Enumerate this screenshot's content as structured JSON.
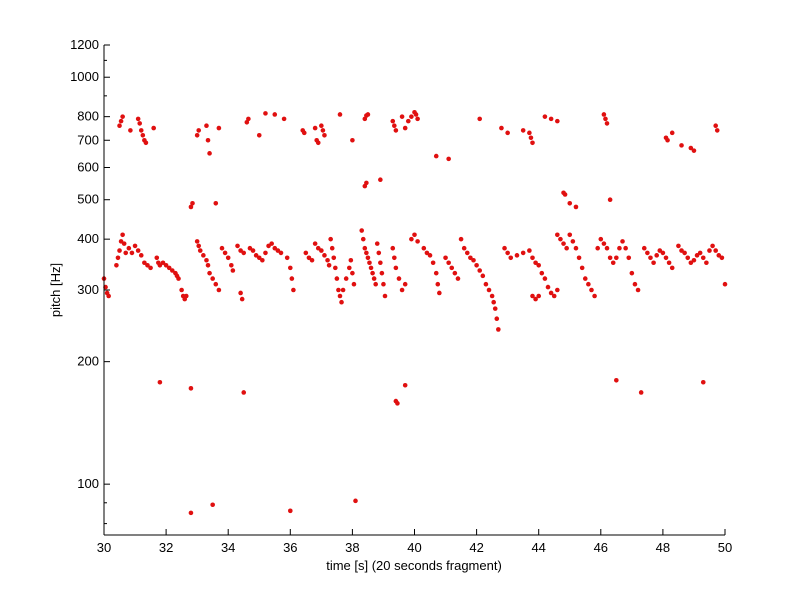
{
  "chart_data": {
    "type": "scatter",
    "xlabel": "time [s] (20 seconds fragment)",
    "ylabel": "pitch [Hz]",
    "xlim": [
      30,
      50
    ],
    "ylim": [
      75,
      1200
    ],
    "y_scale": "log",
    "grid": false,
    "legend": "none",
    "marker_color": "#e01010",
    "x_ticks": [
      30,
      32,
      34,
      36,
      38,
      40,
      42,
      44,
      46,
      48,
      50
    ],
    "x_tick_labels": [
      "30",
      "32",
      "34",
      "36",
      "38",
      "40",
      "42",
      "44",
      "46",
      "48",
      "50"
    ],
    "y_ticks": [
      100,
      200,
      300,
      400,
      500,
      600,
      700,
      800,
      1000,
      1200
    ],
    "y_tick_labels": [
      "100",
      "200",
      "300",
      "400",
      "500",
      "600",
      "700",
      "800",
      "1000",
      "1200"
    ],
    "series": [
      {
        "points": [
          [
            30.0,
            320
          ],
          [
            30.05,
            305
          ],
          [
            30.1,
            295
          ],
          [
            30.15,
            290
          ],
          [
            30.4,
            345
          ],
          [
            30.45,
            360
          ],
          [
            30.5,
            375
          ],
          [
            30.55,
            395
          ],
          [
            30.6,
            410
          ],
          [
            30.65,
            390
          ],
          [
            30.7,
            370
          ],
          [
            30.8,
            380
          ],
          [
            30.9,
            370
          ],
          [
            31.0,
            385
          ],
          [
            31.1,
            375
          ],
          [
            31.2,
            365
          ],
          [
            31.3,
            350
          ],
          [
            31.4,
            345
          ],
          [
            31.5,
            340
          ],
          [
            30.5,
            760
          ],
          [
            30.55,
            780
          ],
          [
            30.6,
            800
          ],
          [
            30.85,
            740
          ],
          [
            31.1,
            790
          ],
          [
            31.15,
            770
          ],
          [
            31.2,
            740
          ],
          [
            31.25,
            720
          ],
          [
            31.3,
            700
          ],
          [
            31.35,
            690
          ],
          [
            31.6,
            750
          ],
          [
            31.7,
            360
          ],
          [
            31.75,
            350
          ],
          [
            31.8,
            345
          ],
          [
            31.9,
            350
          ],
          [
            32.0,
            345
          ],
          [
            32.1,
            340
          ],
          [
            32.2,
            335
          ],
          [
            32.3,
            330
          ],
          [
            32.35,
            325
          ],
          [
            32.4,
            320
          ],
          [
            32.5,
            300
          ],
          [
            32.55,
            290
          ],
          [
            32.6,
            285
          ],
          [
            32.65,
            290
          ],
          [
            32.8,
            480
          ],
          [
            32.85,
            490
          ],
          [
            33.0,
            395
          ],
          [
            33.05,
            385
          ],
          [
            33.1,
            375
          ],
          [
            33.2,
            365
          ],
          [
            33.3,
            355
          ],
          [
            33.35,
            345
          ],
          [
            33.4,
            330
          ],
          [
            33.5,
            320
          ],
          [
            33.6,
            310
          ],
          [
            33.7,
            300
          ],
          [
            33.8,
            380
          ],
          [
            33.9,
            370
          ],
          [
            34.0,
            360
          ],
          [
            34.1,
            345
          ],
          [
            34.15,
            335
          ],
          [
            33.0,
            720
          ],
          [
            33.05,
            740
          ],
          [
            33.3,
            760
          ],
          [
            33.35,
            700
          ],
          [
            33.4,
            650
          ],
          [
            33.7,
            750
          ],
          [
            33.6,
            490
          ],
          [
            34.4,
            295
          ],
          [
            34.45,
            285
          ],
          [
            34.3,
            385
          ],
          [
            34.4,
            375
          ],
          [
            34.5,
            370
          ],
          [
            34.7,
            380
          ],
          [
            34.8,
            375
          ],
          [
            34.9,
            365
          ],
          [
            35.0,
            360
          ],
          [
            35.1,
            355
          ],
          [
            35.2,
            370
          ],
          [
            35.3,
            385
          ],
          [
            35.4,
            390
          ],
          [
            35.5,
            380
          ],
          [
            35.6,
            375
          ],
          [
            35.7,
            370
          ],
          [
            34.6,
            775
          ],
          [
            34.65,
            790
          ],
          [
            35.0,
            720
          ],
          [
            35.2,
            815
          ],
          [
            35.5,
            810
          ],
          [
            35.8,
            790
          ],
          [
            35.9,
            360
          ],
          [
            36.0,
            340
          ],
          [
            36.05,
            320
          ],
          [
            36.1,
            300
          ],
          [
            36.4,
            740
          ],
          [
            36.45,
            730
          ],
          [
            36.8,
            750
          ],
          [
            36.85,
            700
          ],
          [
            36.9,
            690
          ],
          [
            37.0,
            760
          ],
          [
            37.05,
            740
          ],
          [
            37.1,
            720
          ],
          [
            36.5,
            370
          ],
          [
            36.6,
            360
          ],
          [
            36.7,
            355
          ],
          [
            36.8,
            390
          ],
          [
            36.9,
            380
          ],
          [
            37.0,
            375
          ],
          [
            37.1,
            365
          ],
          [
            37.2,
            355
          ],
          [
            37.25,
            345
          ],
          [
            37.3,
            400
          ],
          [
            37.35,
            380
          ],
          [
            37.4,
            360
          ],
          [
            37.45,
            340
          ],
          [
            37.5,
            320
          ],
          [
            37.55,
            300
          ],
          [
            37.6,
            290
          ],
          [
            37.65,
            280
          ],
          [
            37.7,
            300
          ],
          [
            37.8,
            320
          ],
          [
            37.9,
            340
          ],
          [
            37.95,
            355
          ],
          [
            38.0,
            330
          ],
          [
            38.05,
            310
          ],
          [
            37.6,
            810
          ],
          [
            38.0,
            700
          ],
          [
            38.3,
            420
          ],
          [
            38.35,
            400
          ],
          [
            38.4,
            380
          ],
          [
            38.45,
            370
          ],
          [
            38.5,
            360
          ],
          [
            38.55,
            350
          ],
          [
            38.6,
            340
          ],
          [
            38.65,
            330
          ],
          [
            38.7,
            320
          ],
          [
            38.75,
            310
          ],
          [
            38.4,
            540
          ],
          [
            38.45,
            550
          ],
          [
            38.4,
            790
          ],
          [
            38.45,
            805
          ],
          [
            38.5,
            810
          ],
          [
            38.9,
            560
          ],
          [
            38.8,
            390
          ],
          [
            38.85,
            370
          ],
          [
            38.9,
            350
          ],
          [
            38.95,
            330
          ],
          [
            39.0,
            310
          ],
          [
            39.05,
            290
          ],
          [
            39.3,
            380
          ],
          [
            39.35,
            360
          ],
          [
            39.4,
            340
          ],
          [
            39.5,
            320
          ],
          [
            39.6,
            300
          ],
          [
            39.7,
            310
          ],
          [
            39.3,
            780
          ],
          [
            39.35,
            760
          ],
          [
            39.4,
            740
          ],
          [
            39.6,
            800
          ],
          [
            39.7,
            750
          ],
          [
            39.8,
            780
          ],
          [
            39.9,
            800
          ],
          [
            40.0,
            820
          ],
          [
            40.05,
            810
          ],
          [
            40.1,
            790
          ],
          [
            39.4,
            160
          ],
          [
            39.45,
            158
          ],
          [
            39.7,
            175
          ],
          [
            39.9,
            400
          ],
          [
            40.0,
            410
          ],
          [
            40.1,
            395
          ],
          [
            40.3,
            380
          ],
          [
            40.4,
            370
          ],
          [
            40.5,
            365
          ],
          [
            40.6,
            350
          ],
          [
            40.7,
            330
          ],
          [
            40.75,
            310
          ],
          [
            40.8,
            295
          ],
          [
            40.7,
            640
          ],
          [
            41.1,
            630
          ],
          [
            41.0,
            360
          ],
          [
            41.1,
            350
          ],
          [
            41.2,
            340
          ],
          [
            41.3,
            330
          ],
          [
            41.4,
            320
          ],
          [
            41.5,
            400
          ],
          [
            41.6,
            380
          ],
          [
            41.7,
            370
          ],
          [
            41.8,
            360
          ],
          [
            41.9,
            355
          ],
          [
            42.0,
            345
          ],
          [
            42.1,
            335
          ],
          [
            42.2,
            325
          ],
          [
            42.3,
            310
          ],
          [
            42.4,
            300
          ],
          [
            42.5,
            290
          ],
          [
            42.55,
            280
          ],
          [
            42.6,
            270
          ],
          [
            42.65,
            255
          ],
          [
            42.7,
            240
          ],
          [
            42.1,
            790
          ],
          [
            42.8,
            750
          ],
          [
            43.0,
            730
          ],
          [
            43.5,
            740
          ],
          [
            43.7,
            730
          ],
          [
            43.75,
            710
          ],
          [
            43.8,
            690
          ],
          [
            42.9,
            380
          ],
          [
            43.0,
            370
          ],
          [
            43.1,
            360
          ],
          [
            43.3,
            365
          ],
          [
            43.5,
            370
          ],
          [
            43.7,
            375
          ],
          [
            43.8,
            360
          ],
          [
            43.9,
            350
          ],
          [
            44.0,
            345
          ],
          [
            44.1,
            330
          ],
          [
            44.2,
            320
          ],
          [
            44.3,
            305
          ],
          [
            44.4,
            295
          ],
          [
            44.5,
            290
          ],
          [
            44.6,
            300
          ],
          [
            43.8,
            290
          ],
          [
            43.9,
            285
          ],
          [
            44.0,
            290
          ],
          [
            44.6,
            410
          ],
          [
            44.7,
            400
          ],
          [
            44.8,
            390
          ],
          [
            44.9,
            380
          ],
          [
            45.0,
            410
          ],
          [
            45.1,
            395
          ],
          [
            45.2,
            380
          ],
          [
            45.3,
            360
          ],
          [
            45.4,
            340
          ],
          [
            45.5,
            320
          ],
          [
            45.6,
            310
          ],
          [
            45.7,
            300
          ],
          [
            45.8,
            290
          ],
          [
            44.8,
            520
          ],
          [
            44.85,
            515
          ],
          [
            45.0,
            490
          ],
          [
            45.2,
            480
          ],
          [
            44.2,
            800
          ],
          [
            44.4,
            790
          ],
          [
            44.6,
            780
          ],
          [
            45.9,
            380
          ],
          [
            46.0,
            400
          ],
          [
            46.1,
            390
          ],
          [
            46.2,
            380
          ],
          [
            46.3,
            360
          ],
          [
            46.4,
            350
          ],
          [
            46.5,
            360
          ],
          [
            46.6,
            380
          ],
          [
            46.7,
            395
          ],
          [
            46.8,
            380
          ],
          [
            46.9,
            360
          ],
          [
            47.0,
            330
          ],
          [
            47.1,
            310
          ],
          [
            47.2,
            300
          ],
          [
            46.1,
            810
          ],
          [
            46.15,
            790
          ],
          [
            46.2,
            770
          ],
          [
            46.3,
            500
          ],
          [
            46.5,
            180
          ],
          [
            47.3,
            168
          ],
          [
            47.4,
            380
          ],
          [
            47.5,
            370
          ],
          [
            47.6,
            360
          ],
          [
            47.7,
            350
          ],
          [
            47.8,
            365
          ],
          [
            47.9,
            375
          ],
          [
            48.0,
            370
          ],
          [
            48.1,
            360
          ],
          [
            48.2,
            350
          ],
          [
            48.3,
            340
          ],
          [
            48.1,
            710
          ],
          [
            48.15,
            700
          ],
          [
            48.3,
            730
          ],
          [
            48.6,
            680
          ],
          [
            48.9,
            670
          ],
          [
            49.0,
            660
          ],
          [
            48.5,
            385
          ],
          [
            48.6,
            375
          ],
          [
            48.7,
            370
          ],
          [
            48.8,
            360
          ],
          [
            48.9,
            350
          ],
          [
            49.0,
            355
          ],
          [
            49.1,
            365
          ],
          [
            49.2,
            370
          ],
          [
            49.3,
            360
          ],
          [
            49.4,
            350
          ],
          [
            49.5,
            375
          ],
          [
            49.6,
            385
          ],
          [
            49.7,
            375
          ],
          [
            49.8,
            365
          ],
          [
            49.9,
            360
          ],
          [
            50.0,
            310
          ],
          [
            49.3,
            178
          ],
          [
            49.7,
            760
          ],
          [
            49.75,
            740
          ],
          [
            31.8,
            178
          ],
          [
            32.8,
            172
          ],
          [
            34.5,
            168
          ],
          [
            32.8,
            85
          ],
          [
            33.5,
            89
          ],
          [
            36.0,
            86
          ],
          [
            38.1,
            91
          ]
        ]
      }
    ]
  }
}
